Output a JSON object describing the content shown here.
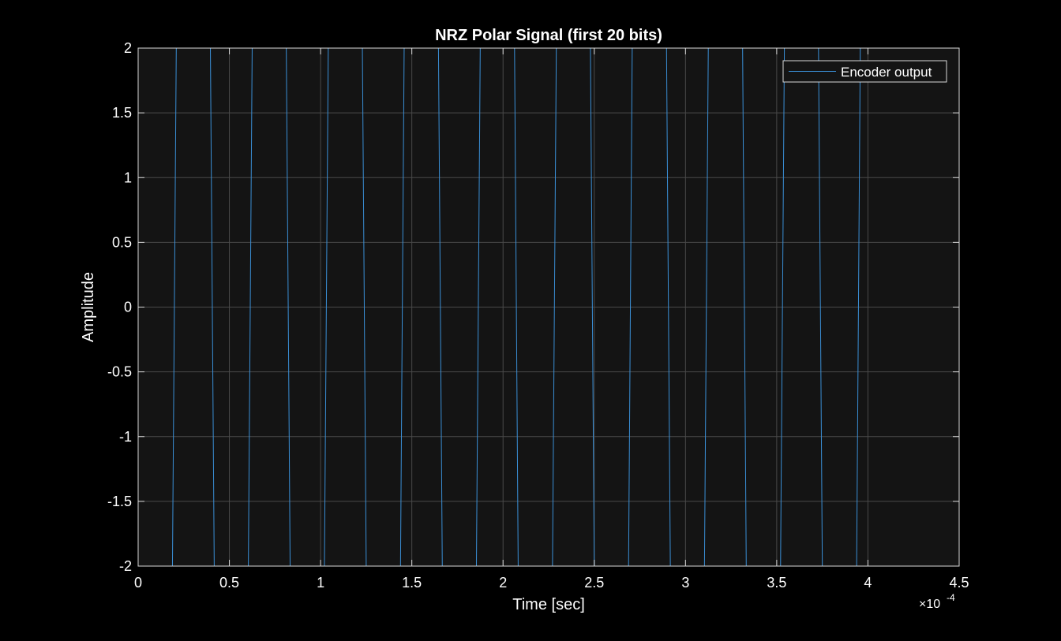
{
  "chart_data": {
    "type": "line",
    "title": "NRZ Polar Signal (first 20 bits)",
    "xlabel": "Time [sec]",
    "ylabel": "Amplitude",
    "x_exponent_label": "×10",
    "x_exponent_power": "-4",
    "xlim": [
      0,
      0.00045
    ],
    "ylim": [
      -2,
      2
    ],
    "x_ticks": [
      0,
      5e-05,
      0.0001,
      0.00015,
      0.0002,
      0.00025,
      0.0003,
      0.00035,
      0.0004,
      0.00045
    ],
    "x_tick_labels": [
      "0",
      "0.5",
      "1",
      "1.5",
      "2",
      "2.5",
      "3",
      "3.5",
      "4",
      "4.5"
    ],
    "y_ticks": [
      -2,
      -1.5,
      -1,
      -0.5,
      0,
      0.5,
      1,
      1.5,
      2
    ],
    "y_tick_labels": [
      "-2",
      "-1.5",
      "-1",
      "-0.5",
      "0",
      "0.5",
      "1",
      "1.5",
      "2"
    ],
    "grid": true,
    "legend_position": "top-right",
    "colors": {
      "figure_bg": "#000000",
      "axes_bg": "#141414",
      "axis_line": "#d9d9d9",
      "grid": "#4a4a4a",
      "text": "#ffffff",
      "series": "#3a8fd6"
    },
    "series": [
      {
        "name": "Encoder output",
        "x": [
          0,
          1.88e-05,
          2.09e-05,
          3.96e-05,
          4.17e-05,
          6.04e-05,
          6.25e-05,
          8.12e-05,
          8.33e-05,
          0.0001021,
          0.0001042,
          0.0001229,
          0.000125,
          0.0001438,
          0.0001458,
          0.0001646,
          0.0001667,
          0.0001854,
          0.0001875,
          0.0002063,
          0.0002083,
          0.0002271,
          0.0002292,
          0.0002479,
          0.00025,
          0.0002688,
          0.0002708,
          0.0002896,
          0.0002917,
          0.0003104,
          0.0003125,
          0.0003313,
          0.0003333,
          0.0003521,
          0.0003542,
          0.0003729,
          0.000375,
          0.0003938,
          0.0003958,
          0.0004146
        ],
        "y": [
          -2,
          -2,
          2,
          2,
          -2,
          -2,
          2,
          2,
          -2,
          -2,
          2,
          2,
          -2,
          -2,
          2,
          2,
          -2,
          -2,
          2,
          2,
          -2,
          -2,
          2,
          2,
          -2,
          -2,
          2,
          2,
          -2,
          -2,
          2,
          2,
          -2,
          -2,
          2,
          2,
          -2,
          -2,
          2,
          2
        ]
      }
    ]
  }
}
